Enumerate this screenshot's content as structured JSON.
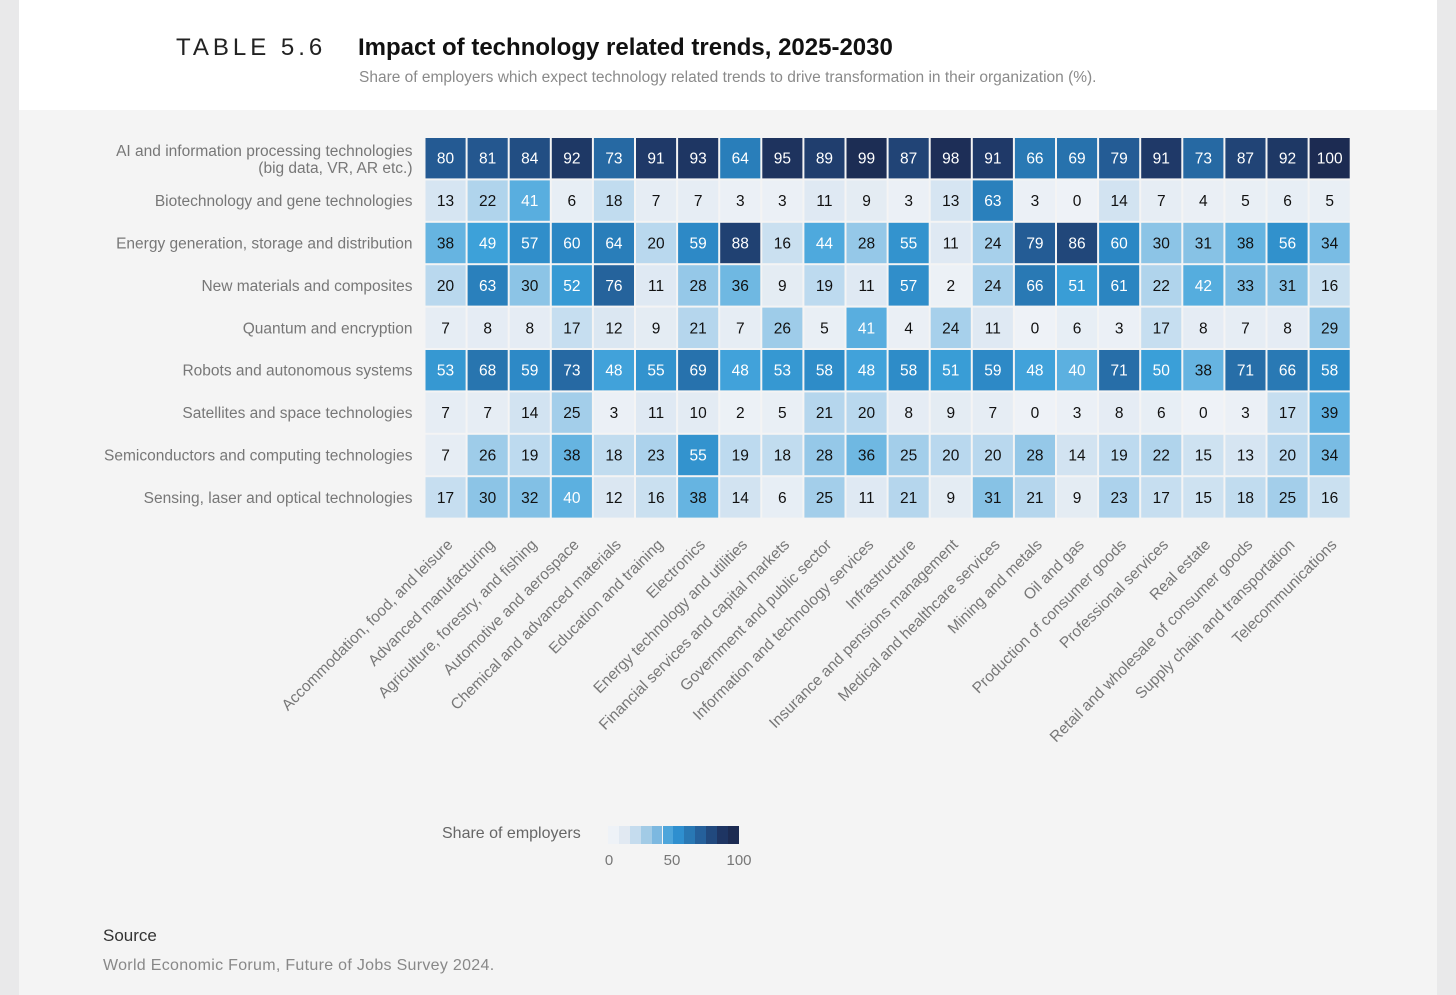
{
  "header": {
    "table_number": "TABLE 5.6",
    "title": "Impact of technology related trends, 2025-2030",
    "subtitle": "Share of employers which expect  technology related trends to drive transformation in their organization (%)."
  },
  "legend": {
    "title": "Share of employers",
    "ticks": [
      "0",
      "50",
      "100"
    ],
    "colors": [
      "#eef2f7",
      "#e1e9f2",
      "#c5dcee",
      "#a2cbe6",
      "#7cb8e0",
      "#4da5db",
      "#2f8fcf",
      "#2978b4",
      "#25609b",
      "#21497e",
      "#1e3563",
      "#1c2b52"
    ]
  },
  "source": {
    "title": "Source",
    "text": "World Economic Forum, Future of Jobs Survey 2024."
  },
  "chart_data": {
    "type": "heatmap",
    "title": "Impact of technology related trends, 2025-2030",
    "rows": [
      [
        "AI and information processing technologies",
        "(big data, VR, AR etc.)"
      ],
      [
        "Biotechnology and gene technologies"
      ],
      [
        "Energy generation, storage and distribution"
      ],
      [
        "New materials and composites"
      ],
      [
        "Quantum and encryption"
      ],
      [
        "Robots and autonomous systems"
      ],
      [
        "Satellites and space technologies"
      ],
      [
        "Semiconductors and computing technologies"
      ],
      [
        "Sensing, laser and optical technologies"
      ]
    ],
    "columns": [
      "Accommodation, food, and leisure",
      "Advanced manufacturing",
      "Agriculture, forestry, and fishing",
      "Automotive and aerospace",
      "Chemical and advanced materials",
      "Education and training",
      "Electronics",
      "Energy technology and utilities",
      "Financial services and capital markets",
      "Government and public sector",
      "Information and technology services",
      "Infrastructure",
      "Insurance and pensions management",
      "Medical and healthcare services",
      "Mining and metals",
      "Oil and gas",
      "Production of consumer goods",
      "Professional services",
      "Real estate",
      "Retail and wholesale of consumer goods",
      "Supply chain and transportation",
      "Telecommunications"
    ],
    "values": [
      [
        80,
        81,
        84,
        92,
        73,
        91,
        93,
        64,
        95,
        89,
        99,
        87,
        98,
        91,
        66,
        69,
        79,
        91,
        73,
        87,
        92,
        100
      ],
      [
        13,
        22,
        41,
        6,
        18,
        7,
        7,
        3,
        3,
        11,
        9,
        3,
        13,
        63,
        3,
        0,
        14,
        7,
        4,
        5,
        6,
        5
      ],
      [
        38,
        49,
        57,
        60,
        64,
        20,
        59,
        88,
        16,
        44,
        28,
        55,
        11,
        24,
        79,
        86,
        60,
        30,
        31,
        38,
        56,
        34
      ],
      [
        20,
        63,
        30,
        52,
        76,
        11,
        28,
        36,
        9,
        19,
        11,
        57,
        2,
        24,
        66,
        51,
        61,
        22,
        42,
        33,
        31,
        16
      ],
      [
        7,
        8,
        8,
        17,
        12,
        9,
        21,
        7,
        26,
        5,
        41,
        4,
        24,
        11,
        0,
        6,
        3,
        17,
        8,
        7,
        8,
        29
      ],
      [
        53,
        68,
        59,
        73,
        48,
        55,
        69,
        48,
        53,
        58,
        48,
        58,
        51,
        59,
        48,
        40,
        71,
        50,
        38,
        71,
        66,
        58
      ],
      [
        7,
        7,
        14,
        25,
        3,
        11,
        10,
        2,
        5,
        21,
        20,
        8,
        9,
        7,
        0,
        3,
        8,
        6,
        0,
        3,
        17,
        39
      ],
      [
        7,
        26,
        19,
        38,
        18,
        23,
        55,
        19,
        18,
        28,
        36,
        25,
        20,
        20,
        28,
        14,
        19,
        22,
        15,
        13,
        20,
        34
      ],
      [
        17,
        30,
        32,
        40,
        12,
        16,
        38,
        14,
        6,
        25,
        11,
        21,
        9,
        31,
        21,
        9,
        23,
        17,
        15,
        18,
        25,
        16
      ]
    ],
    "value_range": [
      0,
      100
    ],
    "legend_title": "Share of employers"
  }
}
